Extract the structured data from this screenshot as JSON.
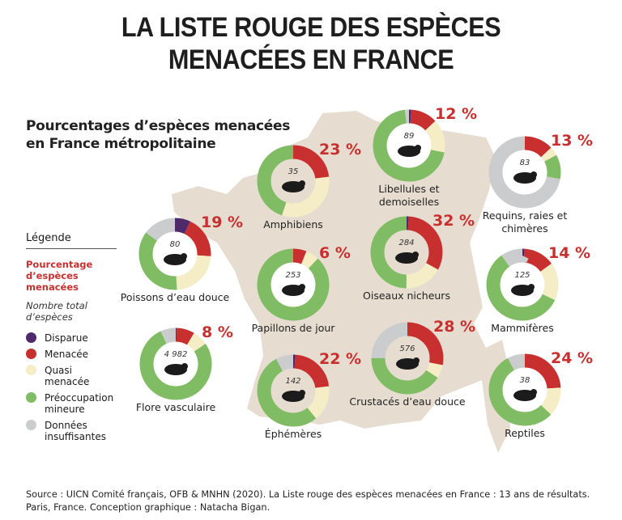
{
  "title_line1": "LA LISTE ROUGE DES ESPÈCES",
  "title_line2": "MENACÉES EN FRANCE",
  "subtitle_line1": "Pourcentages d’espèces menacées",
  "subtitle_line2": "en France métropolitaine",
  "legend": {
    "heading": "Légende",
    "pct_label": "Pourcentage d’espèces menacées",
    "count_label": "Nombre total d’espèces",
    "items": [
      {
        "label": "Disparue",
        "color": "#4e2a6b"
      },
      {
        "label": "Menacée",
        "color": "#c8302f"
      },
      {
        "label": "Quasi menacée",
        "color": "#f4edc6"
      },
      {
        "label": "Préoccupation mineure",
        "color": "#7fbc63"
      },
      {
        "label": "Données insuffisantes",
        "color": "#cbcccd"
      }
    ]
  },
  "map_color": "#e6ddd0",
  "chart_data": {
    "type": "donut",
    "segment_order": [
      "Disparue",
      "Menacée",
      "Quasi menacée",
      "Préoccupation mineure",
      "Données insuffisantes"
    ],
    "groups": [
      {
        "name": "Amphibiens",
        "label_lines": [
          "Amphibiens"
        ],
        "total": "35",
        "pct": "23 %",
        "values": [
          0,
          23,
          32,
          45,
          0
        ],
        "icon": "frog-icon"
      },
      {
        "name": "Libellules et demoiselles",
        "label_lines": [
          "Libellules et",
          "demoiselles"
        ],
        "total": "89",
        "pct": "12 %",
        "values": [
          1,
          12,
          15,
          70,
          2
        ],
        "icon": "dragonfly-icon"
      },
      {
        "name": "Requins, raies et chimères",
        "label_lines": [
          "Requins, raies et",
          "chimères"
        ],
        "total": "83",
        "pct": "13 %",
        "values": [
          0,
          13,
          4,
          11,
          72
        ],
        "icon": "shark-icon"
      },
      {
        "name": "Poissons d’eau douce",
        "label_lines": [
          "Poissons d’eau douce"
        ],
        "total": "80",
        "pct": "19 %",
        "values": [
          7,
          19,
          23,
          36,
          15
        ],
        "icon": "fish-icon"
      },
      {
        "name": "Oiseaux nicheurs",
        "label_lines": [
          "Oiseaux nicheurs"
        ],
        "total": "284",
        "pct": "32 %",
        "values": [
          1,
          32,
          17,
          50,
          0
        ],
        "icon": "bird-icon"
      },
      {
        "name": "Papillons de jour",
        "label_lines": [
          "Papillons de jour"
        ],
        "total": "253",
        "pct": "6 %",
        "values": [
          0,
          6,
          6,
          88,
          0
        ],
        "icon": "butterfly-icon"
      },
      {
        "name": "Mammifères",
        "label_lines": [
          "Mammifères"
        ],
        "total": "125",
        "pct": "14 %",
        "values": [
          1,
          14,
          17,
          58,
          10
        ],
        "icon": "fox-icon"
      },
      {
        "name": "Flore vasculaire",
        "label_lines": [
          "Flore vasculaire"
        ],
        "total": "4 982",
        "pct": "8 %",
        "values": [
          0.5,
          8,
          7,
          77.5,
          7
        ],
        "icon": "plant-icon"
      },
      {
        "name": "Éphémères",
        "label_lines": [
          "Éphémères"
        ],
        "total": "142",
        "pct": "22 %",
        "values": [
          1,
          22,
          16,
          53,
          8
        ],
        "icon": "mayfly-icon"
      },
      {
        "name": "Crustacés d’eau douce",
        "label_lines": [
          "Crustacés d’eau douce"
        ],
        "total": "576",
        "pct": "28 %",
        "values": [
          0,
          28,
          6,
          41,
          25
        ],
        "icon": "crayfish-icon"
      },
      {
        "name": "Reptiles",
        "label_lines": [
          "Reptiles"
        ],
        "total": "38",
        "pct": "24 %",
        "values": [
          0,
          24,
          13,
          55,
          8
        ],
        "icon": "lizard-icon"
      }
    ]
  },
  "source_line1": "Source : UICN Comité français, OFB & MNHN (2020). La Liste rouge des espèces menacées en France : 13 ans de résultats.",
  "source_line2": "Paris, France. Conception graphique : Natacha Bigan."
}
